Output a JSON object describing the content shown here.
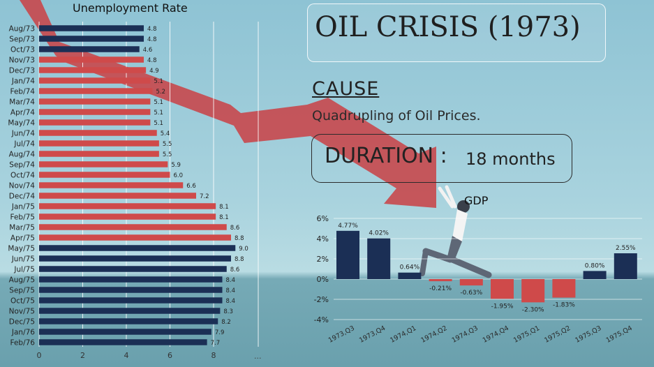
{
  "headline": "OIL CRISIS (1973)",
  "cause": {
    "label": "CAUSE",
    "text": "Quadrupling of Oil Prices."
  },
  "duration": {
    "label": "DURATION",
    "separator": ":",
    "value": "18 months"
  },
  "colors": {
    "navy": "#1b2f55",
    "red": "#cf4a4a",
    "arrow": "#c8484c"
  },
  "chart_data": [
    {
      "type": "bar",
      "orientation": "horizontal",
      "title": "Unemployment Rate",
      "categories": [
        "Aug/73",
        "Sep/73",
        "Oct/73",
        "Nov/73",
        "Dec/73",
        "Jan/74",
        "Feb/74",
        "Mar/74",
        "Apr/74",
        "May/74",
        "Jun/74",
        "Jul/74",
        "Aug/74",
        "Sep/74",
        "Oct/74",
        "Nov/74",
        "Dec/74",
        "Jan/75",
        "Feb/75",
        "Mar/75",
        "Apr/75",
        "May/75",
        "Jun/75",
        "Jul/75",
        "Aug/75",
        "Sep/75",
        "Oct/75",
        "Nov/75",
        "Dec/75",
        "Jan/76",
        "Feb/76"
      ],
      "values": [
        4.8,
        4.8,
        4.6,
        4.8,
        4.9,
        5.1,
        5.2,
        5.1,
        5.1,
        5.1,
        5.4,
        5.5,
        5.5,
        5.9,
        6.0,
        6.6,
        7.2,
        8.1,
        8.1,
        8.6,
        8.8,
        9.0,
        8.8,
        8.6,
        8.4,
        8.4,
        8.4,
        8.3,
        8.2,
        7.9,
        7.7
      ],
      "value_labels": [
        "4.8",
        "4.8",
        "4.6",
        "4.8",
        "4.9",
        "5.1",
        "5.2",
        "5.1",
        "5.1",
        "5.1",
        "5.4",
        "5.5",
        "5.5",
        "5.9",
        "6.0",
        "6.6",
        "7.2",
        "8.1",
        "8.1",
        "8.6",
        "8.8",
        "9.0",
        "8.8",
        "8.6",
        "8.4",
        "8.4",
        "8.4",
        "8.3",
        "8.2",
        "7.9",
        "7.7"
      ],
      "colors": [
        "navy",
        "navy",
        "navy",
        "red",
        "red",
        "red",
        "red",
        "red",
        "red",
        "red",
        "red",
        "red",
        "red",
        "red",
        "red",
        "red",
        "red",
        "red",
        "red",
        "red",
        "red",
        "navy",
        "navy",
        "navy",
        "navy",
        "navy",
        "navy",
        "navy",
        "navy",
        "navy",
        "navy"
      ],
      "xlim": [
        0,
        10
      ],
      "xticks": [
        0,
        2,
        4,
        6,
        8
      ],
      "xtick_labels": [
        "0",
        "2",
        "4",
        "6",
        "8"
      ],
      "more_label": "...",
      "grid": true
    },
    {
      "type": "bar",
      "title": "GDP",
      "categories": [
        "1973,Q3",
        "1973,Q4",
        "1974,Q1",
        "1974,Q2",
        "1974,Q3",
        "1974,Q4",
        "1975,Q1",
        "1975,Q2",
        "1975,Q3",
        "1975,Q4"
      ],
      "values": [
        4.77,
        4.02,
        0.64,
        -0.21,
        -0.63,
        -1.95,
        -2.3,
        -1.83,
        0.8,
        2.55
      ],
      "value_labels": [
        "4.77%",
        "4.02%",
        "0.64%",
        "-0.21%",
        "-0.63%",
        "-1.95%",
        "-2.30%",
        "-1.83%",
        "0.80%",
        "2.55%"
      ],
      "colors": [
        "navy",
        "navy",
        "navy",
        "red",
        "red",
        "red",
        "red",
        "red",
        "navy",
        "navy"
      ],
      "ylim": [
        -4,
        6
      ],
      "yticks": [
        -4,
        -2,
        0,
        2,
        4,
        6
      ],
      "ytick_labels": [
        "-4%",
        "-2%",
        "0%",
        "2%",
        "4%",
        "6%"
      ],
      "grid": true
    }
  ]
}
